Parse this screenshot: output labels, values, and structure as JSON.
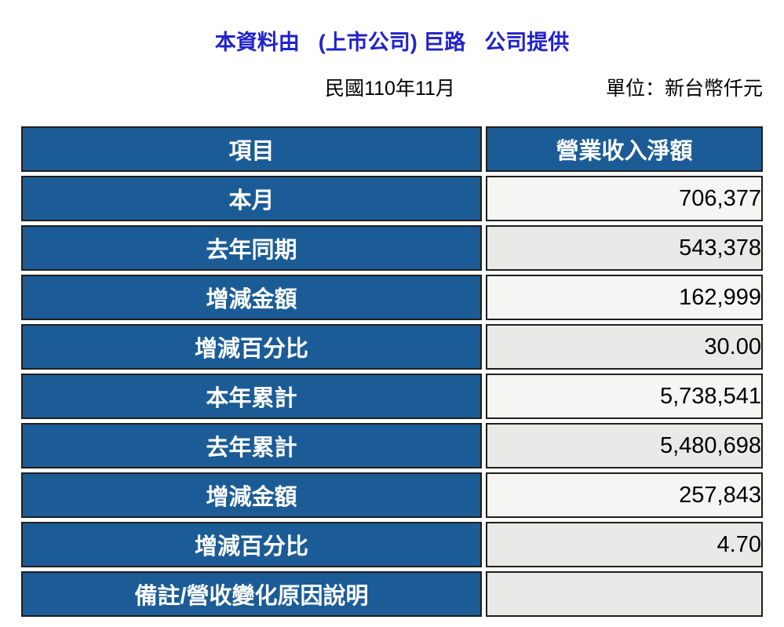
{
  "header": {
    "provider_prefix": "本資料由",
    "company": "(上市公司) 巨路",
    "provider_suffix": "公司提供",
    "period": "民國110年11月",
    "unit": "單位：新台幣仟元"
  },
  "table": {
    "columns": [
      "項目",
      "營業收入淨額"
    ],
    "rows": [
      {
        "label": "本月",
        "value": "706,377",
        "shade": "light"
      },
      {
        "label": "去年同期",
        "value": "543,378",
        "shade": "dark"
      },
      {
        "label": "增減金額",
        "value": "162,999",
        "shade": "light"
      },
      {
        "label": "增減百分比",
        "value": "30.00",
        "shade": "dark"
      },
      {
        "label": "本年累計",
        "value": "5,738,541",
        "shade": "light"
      },
      {
        "label": "去年累計",
        "value": "5,480,698",
        "shade": "dark"
      },
      {
        "label": "增減金額",
        "value": "257,843",
        "shade": "light"
      },
      {
        "label": "增減百分比",
        "value": "4.70",
        "shade": "dark"
      },
      {
        "label": "備註/營收變化原因說明",
        "value": "",
        "shade": "dark"
      }
    ]
  },
  "colors": {
    "title_blue": "#2222cc",
    "table_blue": "#1c5c96",
    "row_light": "#f5f5f4",
    "row_dark": "#e9e9e8",
    "cell_border": "#1f1f1f"
  }
}
